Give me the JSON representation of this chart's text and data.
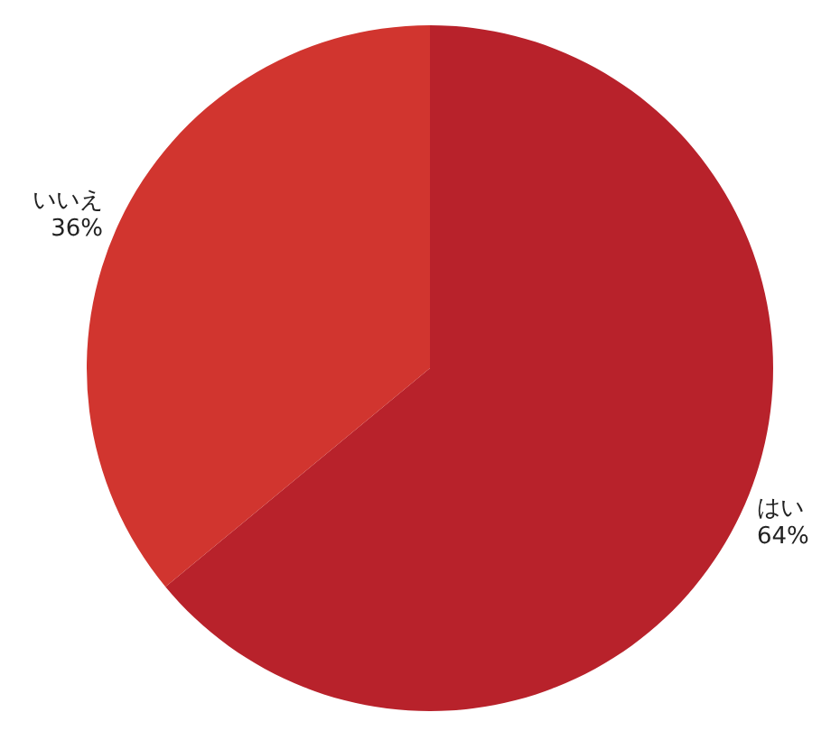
{
  "chart_data": {
    "type": "pie",
    "categories": [
      "はい",
      "いいえ"
    ],
    "values": [
      64,
      36
    ],
    "value_labels": [
      "64%",
      "36%"
    ],
    "colors": [
      "#b8222b",
      "#d1352f"
    ],
    "legend": false
  }
}
